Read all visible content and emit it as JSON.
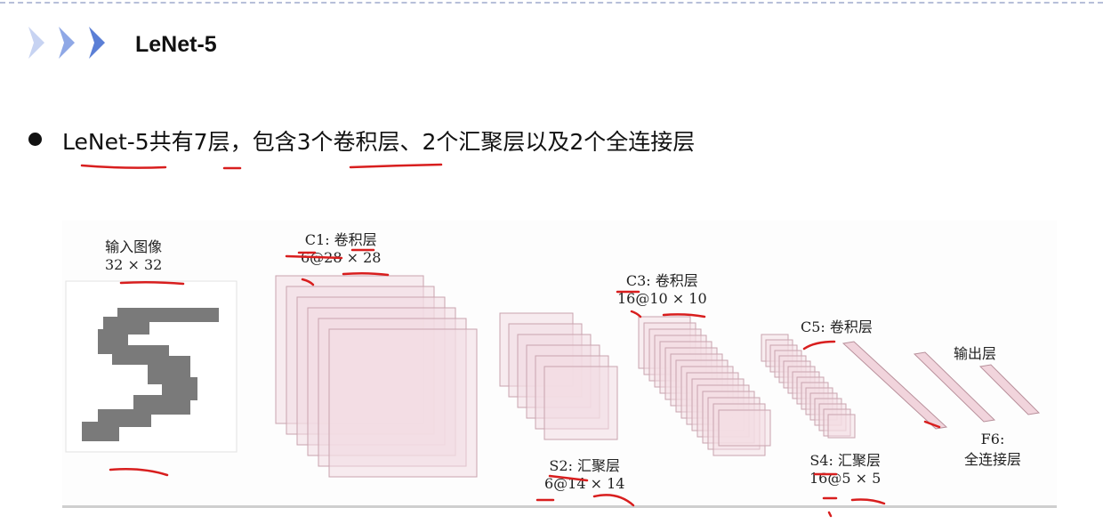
{
  "title": "LeNet-5",
  "bullet": "LeNet-5共有7层，包含3个卷积层、2个汇聚层以及2个全连接层",
  "diagram": {
    "input": {
      "name": "输入图像",
      "size": "32 × 32"
    },
    "c1": {
      "name": "C1: 卷积层",
      "size": "6@28 × 28"
    },
    "s2": {
      "name": "S2: 汇聚层",
      "size": "6@14 × 14"
    },
    "c3": {
      "name": "C3: 卷积层",
      "size": "16@10 × 10"
    },
    "s4": {
      "name": "S4: 汇聚层",
      "size": "16@5 × 5"
    },
    "c5": {
      "name": "C5: 卷积层"
    },
    "f6": {
      "name": "F6:",
      "name2": "全连接层"
    },
    "output": {
      "name": "输出层"
    }
  },
  "colors": {
    "accent_chevron": "#5b7fd6",
    "map_fill": "#f3dde3",
    "map_stroke": "#c9a3ae",
    "digit": "#7a7a7a",
    "ink": "#d81e1e"
  }
}
